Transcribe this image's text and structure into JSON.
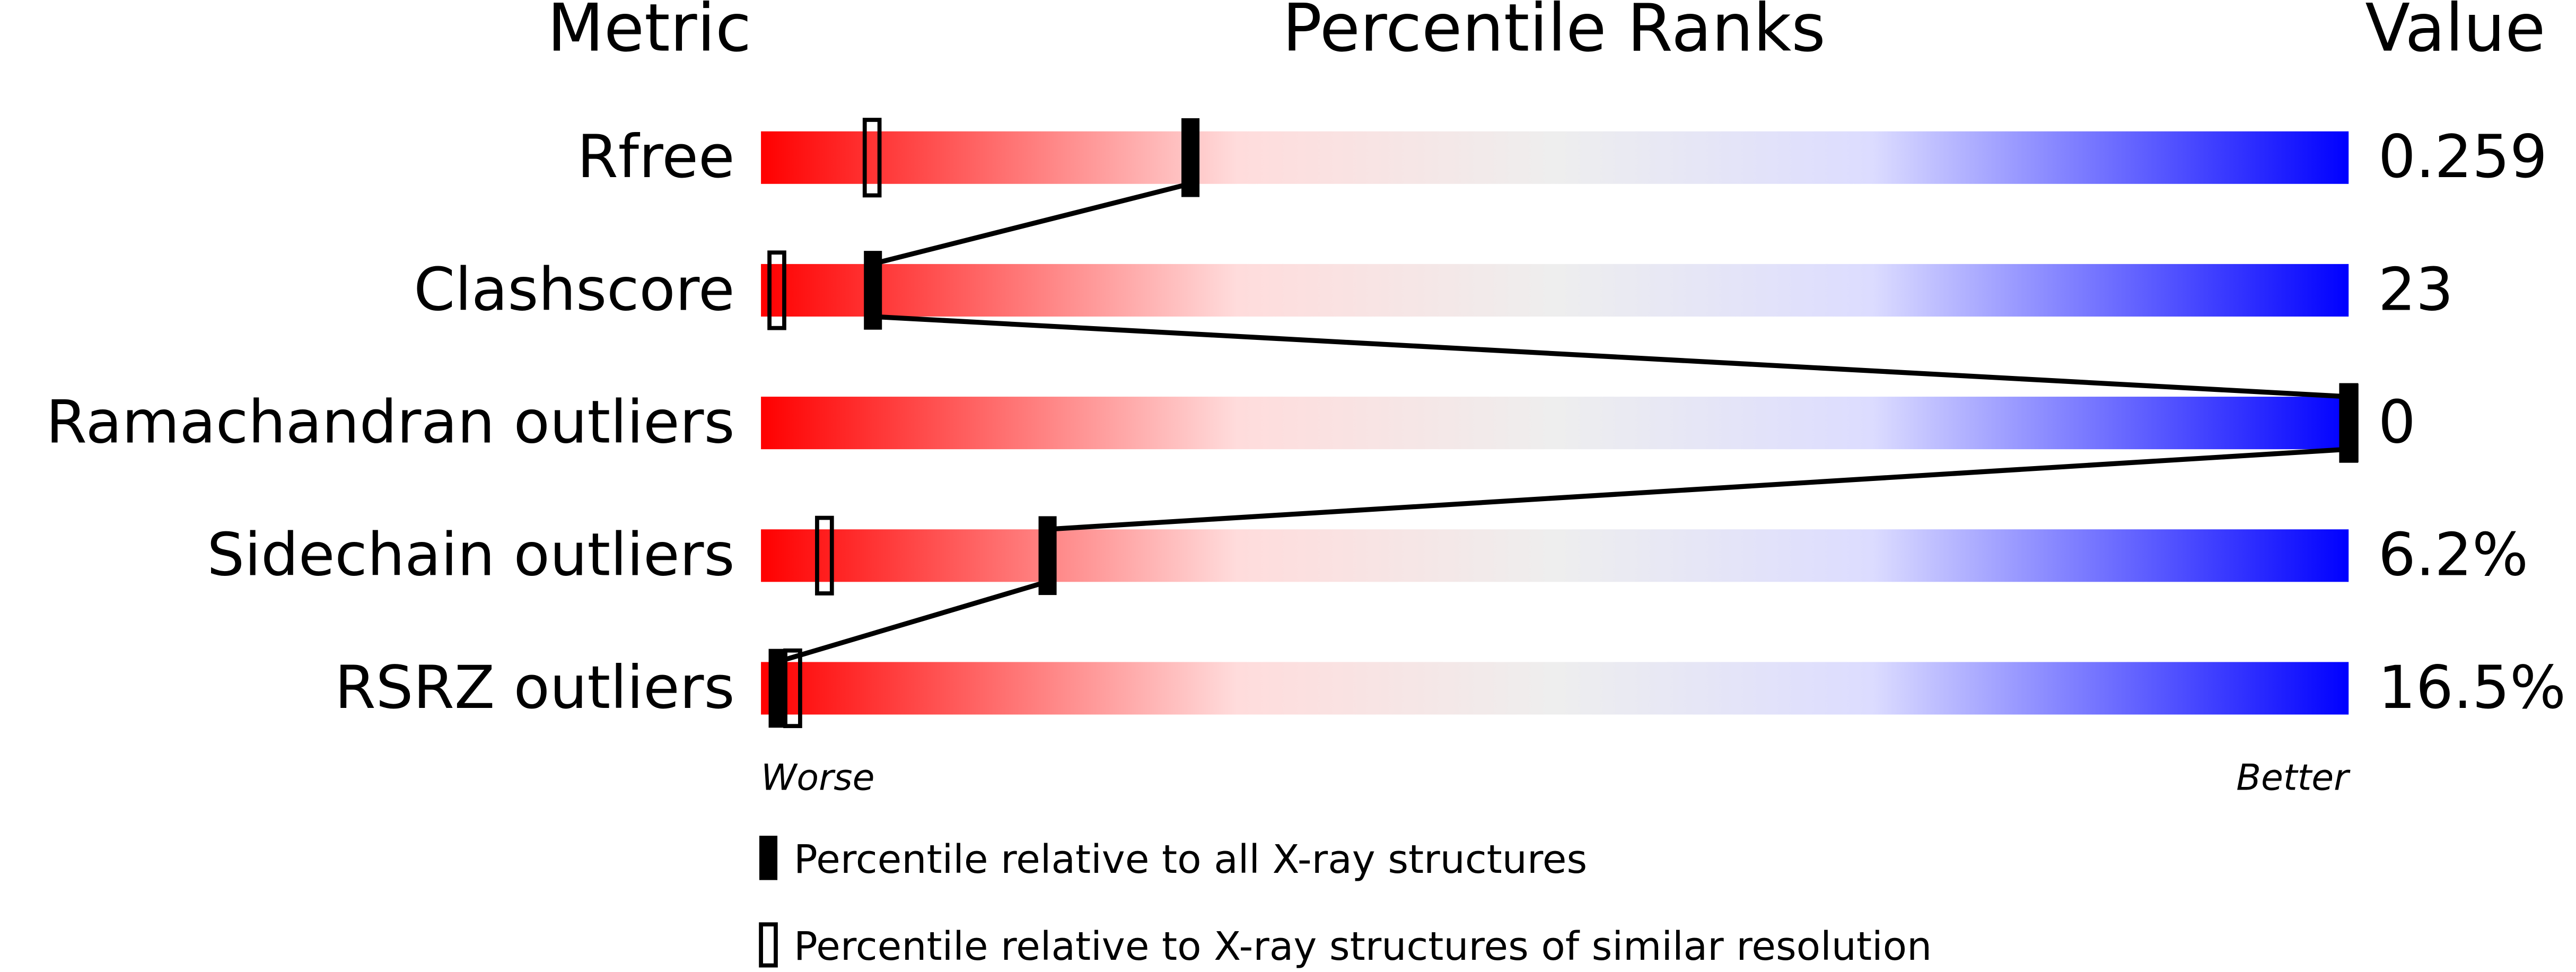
{
  "chart_data": {
    "type": "percentile-slider",
    "metric_header": "Metric",
    "title": "Percentile Ranks",
    "value_header": "Value",
    "categories": [
      "Rfree",
      "Clashscore",
      "Ramachandran outliers",
      "Sidechain outliers",
      "RSRZ outliers"
    ],
    "value_column": [
      "0.259",
      "23",
      "0",
      "6.2%",
      "16.5%"
    ],
    "xlim": [
      0,
      100
    ],
    "worse_label": "Worse",
    "better_label": "Better",
    "series": [
      {
        "name": "Percentile relative to all X-ray structures",
        "style": "filled",
        "color": "#000000",
        "values": [
          27,
          7,
          100,
          18,
          1
        ]
      },
      {
        "name": "Percentile relative to X-ray structures of similar resolution",
        "style": "open",
        "color": "#000000",
        "values": [
          7,
          1,
          100,
          4,
          2
        ]
      }
    ]
  }
}
